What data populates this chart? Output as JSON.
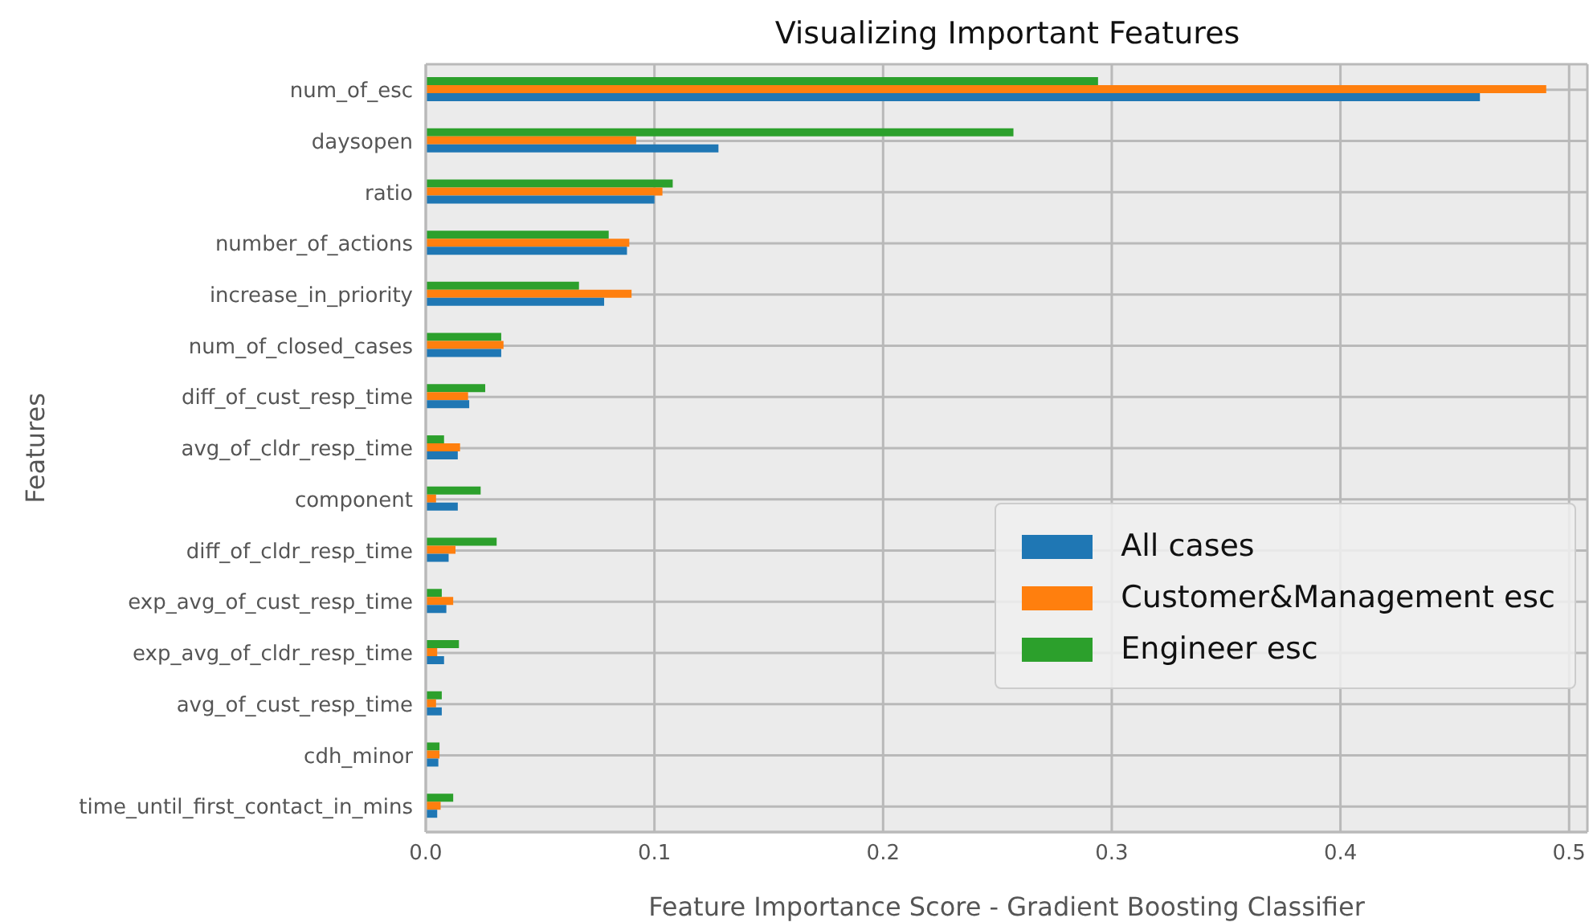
{
  "chart_data": {
    "type": "bar",
    "orientation": "horizontal",
    "title": "Visualizing Important Features",
    "xlabel": "Feature Importance Score - Gradient Boosting Classifier",
    "ylabel": "Features",
    "categories": [
      "num_of_esc",
      "daysopen",
      "ratio",
      "number_of_actions",
      "increase_in_priority",
      "num_of_closed_cases",
      "diff_of_cust_resp_time",
      "avg_of_cldr_resp_time",
      "component",
      "diff_of_cldr_resp_time",
      "exp_avg_of_cust_resp_time",
      "exp_avg_of_cldr_resp_time",
      "avg_of_cust_resp_time",
      "cdh_minor",
      "time_until_first_contact_in_mins"
    ],
    "series": [
      {
        "name": "All cases",
        "color": "#1f77b4",
        "values": [
          0.461,
          0.128,
          0.1,
          0.088,
          0.078,
          0.033,
          0.019,
          0.014,
          0.014,
          0.01,
          0.009,
          0.008,
          0.007,
          0.0055,
          0.005
        ]
      },
      {
        "name": "Customer&Management esc",
        "color": "#ff7f0e",
        "values": [
          0.49,
          0.092,
          0.1035,
          0.089,
          0.09,
          0.034,
          0.0185,
          0.015,
          0.0045,
          0.013,
          0.012,
          0.005,
          0.0045,
          0.006,
          0.0065
        ]
      },
      {
        "name": "Engineer esc",
        "color": "#2ca02c",
        "values": [
          0.294,
          0.257,
          0.108,
          0.08,
          0.067,
          0.033,
          0.026,
          0.008,
          0.024,
          0.031,
          0.007,
          0.0145,
          0.007,
          0.006,
          0.012
        ]
      }
    ],
    "xlim": [
      0,
      0.508
    ],
    "xticks": [
      {
        "value": 0,
        "label": "0.0"
      },
      0.1,
      0.2,
      0.3,
      0.4,
      0.5
    ],
    "grid": true,
    "legend": "right"
  }
}
